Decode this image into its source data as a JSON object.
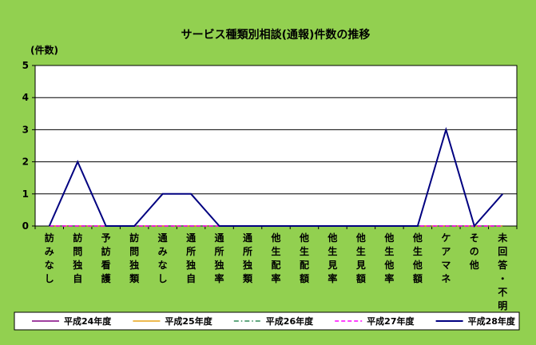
{
  "chart_data": {
    "type": "line",
    "title": "サービス種類別相談(通報)件数の推移",
    "ylabel": "(件数)",
    "xlabel": "",
    "ylim": [
      0,
      5
    ],
    "yticks": [
      0,
      1,
      2,
      3,
      4,
      5
    ],
    "grid": true,
    "legend_position": "bottom",
    "categories": [
      "訪みなし",
      "訪問独自",
      "予訪看護",
      "訪問独類",
      "通みなし",
      "通所独自",
      "通所独率",
      "通所独類",
      "他生配率",
      "他生配額",
      "他生見率",
      "他生見額",
      "他生他率",
      "他生他額",
      "ケアマネ",
      "その他",
      "未回答・不明"
    ],
    "series": [
      {
        "name": "平成24年度",
        "color": "#800080",
        "dash": "solid",
        "values": [
          0,
          0,
          0,
          0,
          0,
          0,
          0,
          0,
          0,
          0,
          0,
          0,
          0,
          0,
          0,
          0,
          0
        ]
      },
      {
        "name": "平成25年度",
        "color": "#e8a317",
        "dash": "solid",
        "values": [
          0,
          0,
          0,
          0,
          0,
          0,
          0,
          0,
          0,
          0,
          0,
          0,
          0,
          0,
          0,
          0,
          0
        ]
      },
      {
        "name": "平成26年度",
        "color": "#2e8b57",
        "dash": "dashdot",
        "values": [
          0,
          0,
          0,
          0,
          0,
          0,
          0,
          0,
          0,
          0,
          0,
          0,
          0,
          0,
          0,
          0,
          0
        ]
      },
      {
        "name": "平成27年度",
        "color": "#ff00ff",
        "dash": "dash",
        "values": [
          0,
          0,
          0,
          0,
          0,
          0,
          0,
          0,
          0,
          0,
          0,
          0,
          0,
          0,
          0,
          0,
          0
        ]
      },
      {
        "name": "平成28年度",
        "color": "#000080",
        "dash": "solid",
        "values": [
          0,
          2,
          0,
          0,
          1,
          1,
          0,
          0,
          0,
          0,
          0,
          0,
          0,
          0,
          3,
          0,
          1
        ]
      }
    ]
  }
}
